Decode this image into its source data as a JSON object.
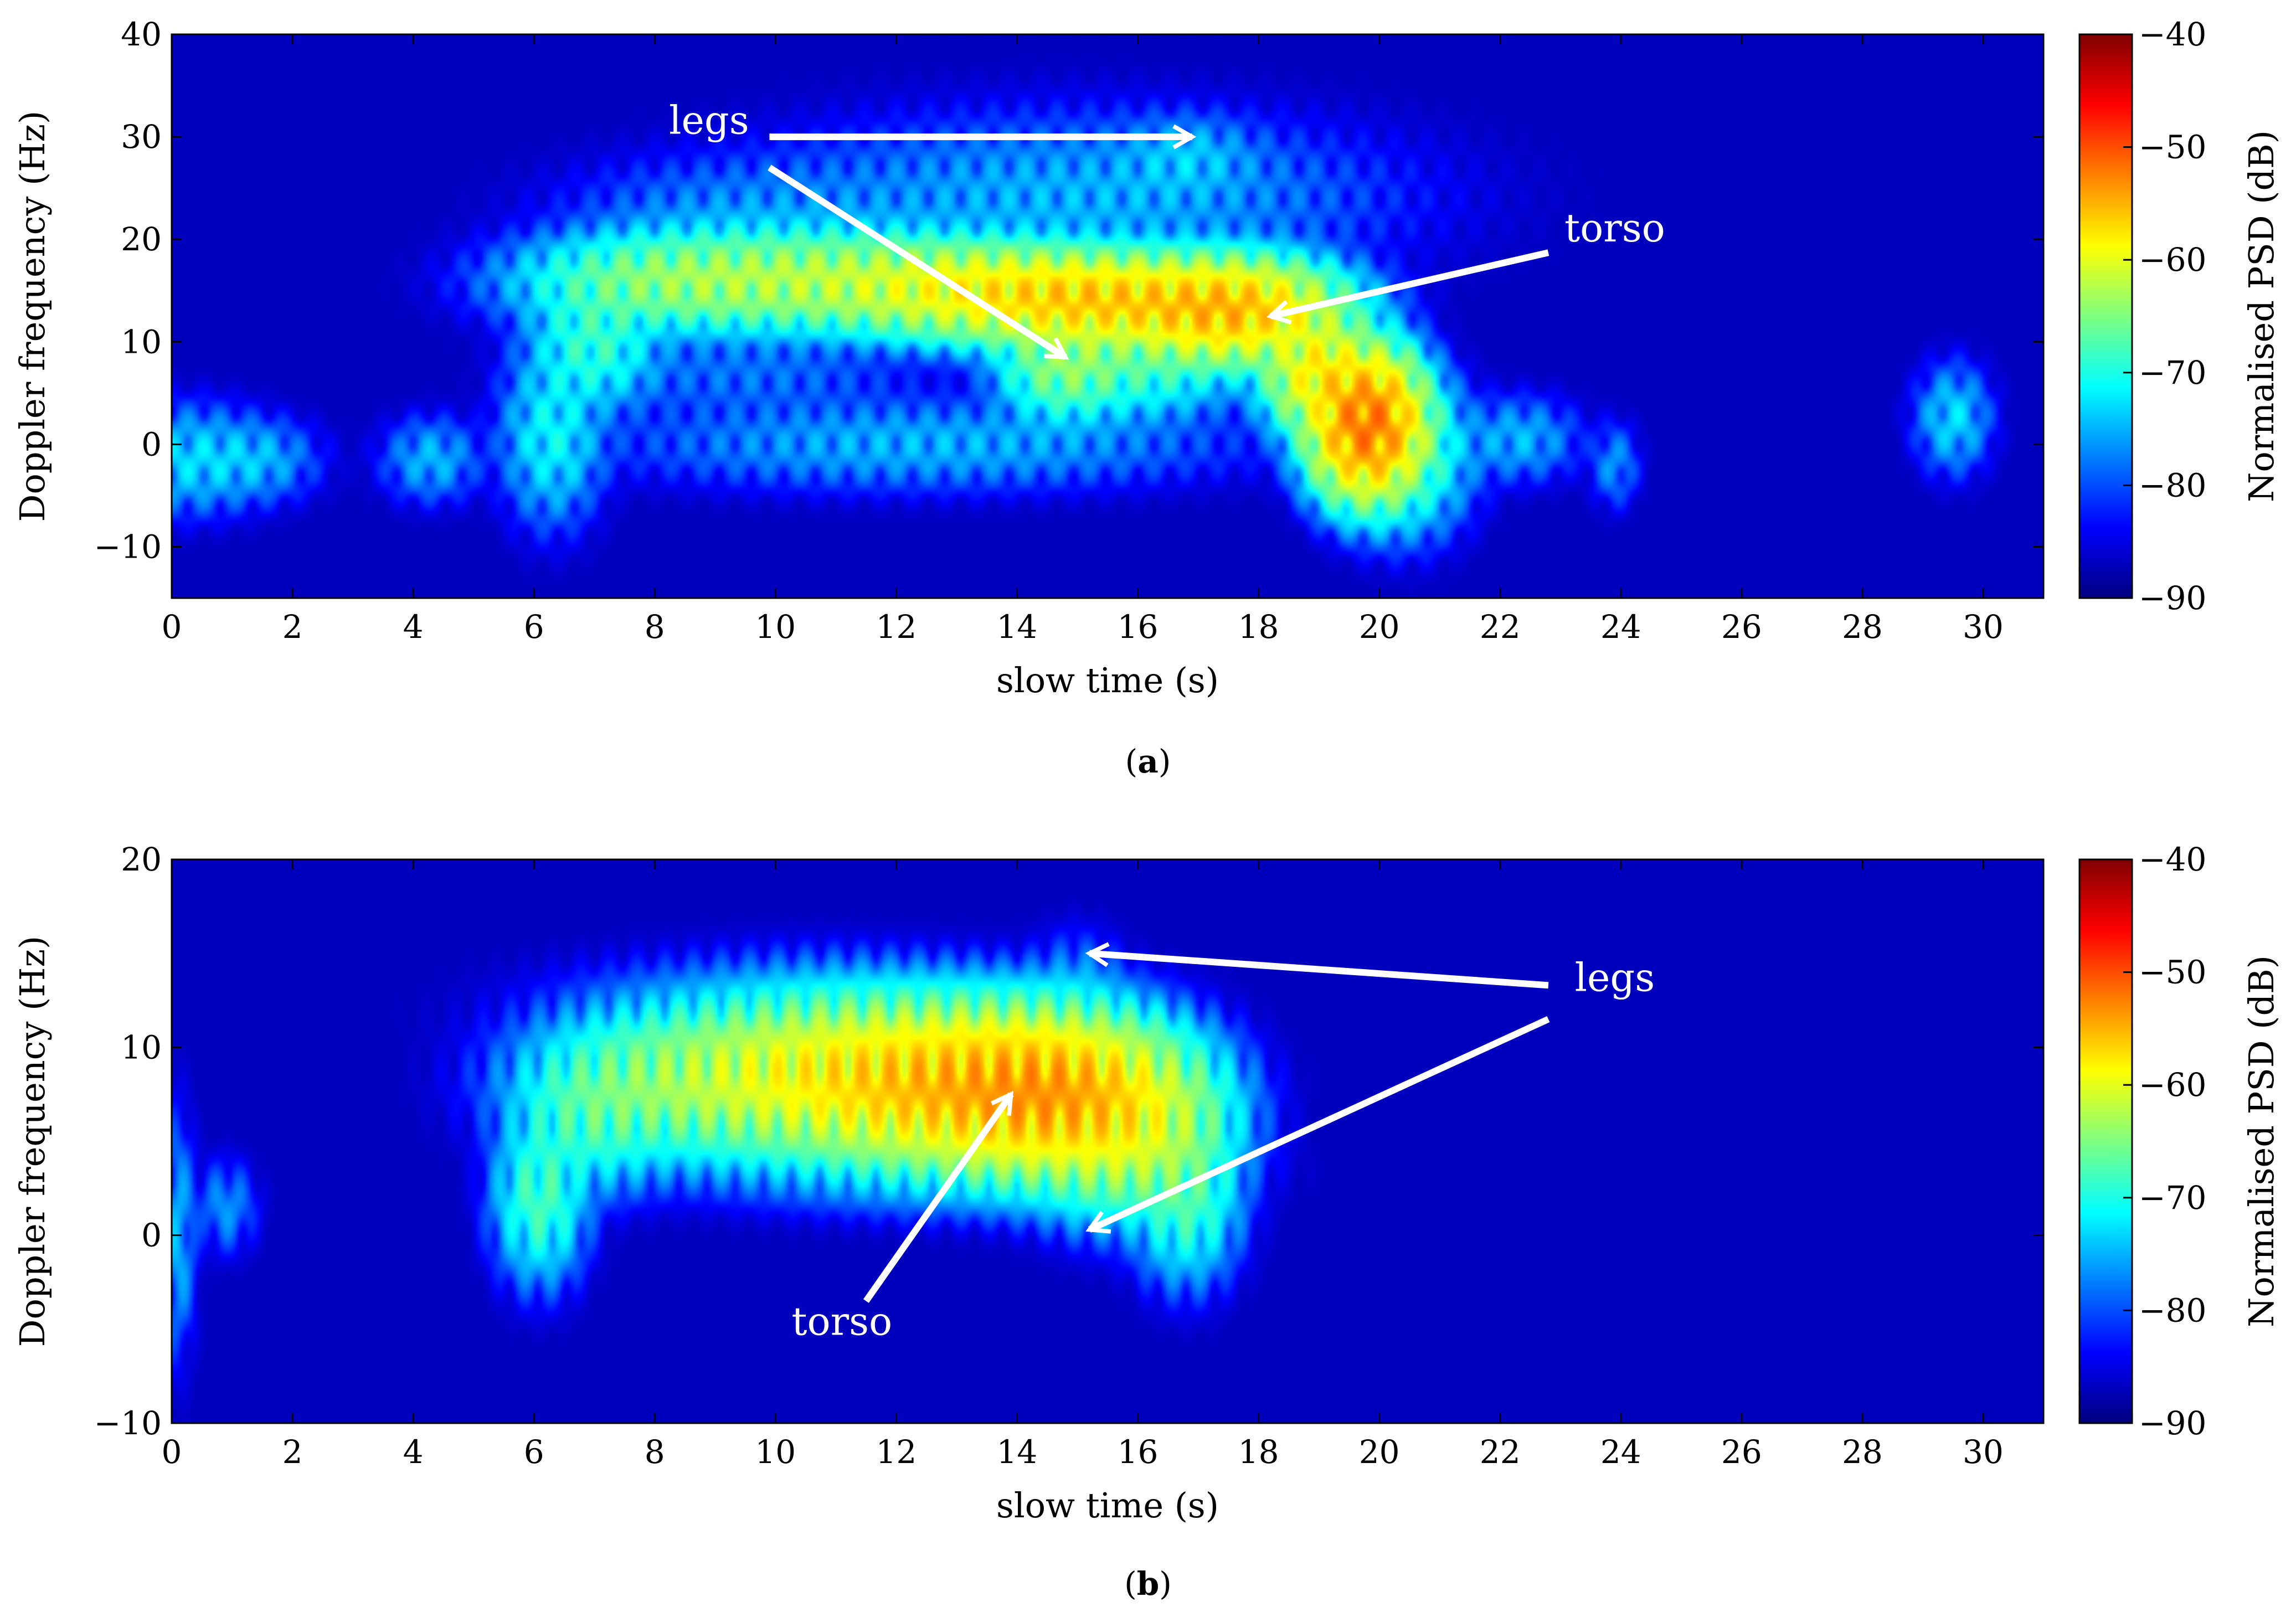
{
  "colors": {
    "background_dark": "#00008f",
    "annotation": "#ffffff",
    "colormap_stops": [
      "#00007f",
      "#0000ff",
      "#007fff",
      "#00ffff",
      "#7fff7f",
      "#ffff00",
      "#ff7f00",
      "#ff0000",
      "#7f0000"
    ]
  },
  "chart_data": [
    {
      "type": "heatmap",
      "panel_label": "a",
      "title": "",
      "xlabel": "slow time (s)",
      "ylabel": "Doppler frequency (Hz)",
      "xlim": [
        0,
        31
      ],
      "ylim": [
        -15,
        40
      ],
      "xticks": [
        0,
        2,
        4,
        6,
        8,
        10,
        12,
        14,
        16,
        18,
        20,
        22,
        24,
        26,
        28,
        30
      ],
      "yticks": [
        -10,
        0,
        10,
        20,
        30,
        40
      ],
      "colorbar": {
        "label": "Normalised PSD (dB)",
        "range": [
          -90,
          -40
        ],
        "ticks": [
          -90,
          -80,
          -70,
          -60,
          -50,
          -40
        ]
      },
      "background_level_db": -90,
      "blobs": [
        {
          "t": 0.3,
          "f": -1.5,
          "sigma_t": 0.6,
          "sigma_f": 2.5,
          "level_db": -72
        },
        {
          "t": 1.4,
          "f": -1.5,
          "sigma_t": 0.5,
          "sigma_f": 2.0,
          "level_db": -74
        },
        {
          "t": 4.3,
          "f": -1.5,
          "sigma_t": 0.4,
          "sigma_f": 2.0,
          "level_db": -74
        },
        {
          "t": 6.3,
          "f": 1.0,
          "sigma_t": 0.4,
          "sigma_f": 4.0,
          "level_db": -70
        },
        {
          "t": 7.0,
          "f": 10.0,
          "sigma_t": 0.5,
          "sigma_f": 3.0,
          "level_db": -67
        },
        {
          "t": 8.5,
          "f": 16.0,
          "sigma_t": 1.2,
          "sigma_f": 2.2,
          "level_db": -62
        },
        {
          "t": 11.0,
          "f": 16.0,
          "sigma_t": 1.5,
          "sigma_f": 2.2,
          "level_db": -60
        },
        {
          "t": 13.5,
          "f": 15.0,
          "sigma_t": 1.2,
          "sigma_f": 2.0,
          "level_db": -56
        },
        {
          "t": 15.5,
          "f": 14.0,
          "sigma_t": 1.2,
          "sigma_f": 2.0,
          "level_db": -53
        },
        {
          "t": 17.5,
          "f": 13.0,
          "sigma_t": 0.8,
          "sigma_f": 2.2,
          "level_db": -52
        },
        {
          "t": 19.0,
          "f": 7.0,
          "sigma_t": 0.4,
          "sigma_f": 2.5,
          "level_db": -55
        },
        {
          "t": 19.8,
          "f": 2.0,
          "sigma_t": 0.4,
          "sigma_f": 3.0,
          "level_db": -48
        },
        {
          "t": 20.4,
          "f": -1.0,
          "sigma_t": 0.5,
          "sigma_f": 3.5,
          "level_db": -66
        },
        {
          "t": 9.5,
          "f": 22.0,
          "sigma_t": 1.5,
          "sigma_f": 3.0,
          "level_db": -76
        },
        {
          "t": 15.0,
          "f": 24.0,
          "sigma_t": 2.5,
          "sigma_f": 4.0,
          "level_db": -74
        },
        {
          "t": 16.8,
          "f": 28.0,
          "sigma_t": 0.6,
          "sigma_f": 2.0,
          "level_db": -74
        },
        {
          "t": 14.8,
          "f": 8.0,
          "sigma_t": 0.5,
          "sigma_f": 2.5,
          "level_db": -62
        },
        {
          "t": 16.0,
          "f": 8.0,
          "sigma_t": 0.8,
          "sigma_f": 2.5,
          "level_db": -66
        },
        {
          "t": 12.5,
          "f": 0.0,
          "sigma_t": 2.5,
          "sigma_f": 2.2,
          "level_db": -74
        },
        {
          "t": 9.5,
          "f": 7.0,
          "sigma_t": 1.5,
          "sigma_f": 2.5,
          "level_db": -78
        },
        {
          "t": 22.3,
          "f": 0.5,
          "sigma_t": 0.5,
          "sigma_f": 2.0,
          "level_db": -74
        },
        {
          "t": 23.9,
          "f": -2.0,
          "sigma_t": 0.2,
          "sigma_f": 2.0,
          "level_db": -76
        },
        {
          "t": 29.5,
          "f": 2.5,
          "sigma_t": 0.3,
          "sigma_f": 2.5,
          "level_db": -72
        }
      ],
      "annotations": [
        {
          "text": "legs",
          "x": 8.9,
          "y": 30.3
        },
        {
          "text": "torso",
          "x": 23.9,
          "y": 19.8
        }
      ],
      "arrows": [
        {
          "from": [
            9.9,
            30.0
          ],
          "to": [
            16.9,
            30.0
          ]
        },
        {
          "from": [
            9.9,
            27.0
          ],
          "to": [
            14.8,
            8.5
          ]
        },
        {
          "from": [
            22.8,
            18.7
          ],
          "to": [
            18.2,
            12.5
          ]
        }
      ]
    },
    {
      "type": "heatmap",
      "panel_label": "b",
      "title": "",
      "xlabel": "slow time (s)",
      "ylabel": "Doppler frequency (Hz)",
      "xlim": [
        0,
        31
      ],
      "ylim": [
        -10,
        20
      ],
      "xticks": [
        0,
        2,
        4,
        6,
        8,
        10,
        12,
        14,
        16,
        18,
        20,
        22,
        24,
        26,
        28,
        30
      ],
      "yticks": [
        -10,
        0,
        10,
        20
      ],
      "colorbar": {
        "label": "Normalised PSD (dB)",
        "range": [
          -90,
          -40
        ],
        "ticks": [
          -90,
          -80,
          -70,
          -60,
          -50,
          -40
        ]
      },
      "background_level_db": -90,
      "blobs": [
        {
          "t": 0.1,
          "f": 0.0,
          "sigma_t": 0.15,
          "sigma_f": 3.0,
          "level_db": -74
        },
        {
          "t": 0.9,
          "f": 1.5,
          "sigma_t": 0.25,
          "sigma_f": 1.2,
          "level_db": -76
        },
        {
          "t": 6.1,
          "f": 2.0,
          "sigma_t": 0.35,
          "sigma_f": 2.0,
          "level_db": -66
        },
        {
          "t": 7.0,
          "f": 6.5,
          "sigma_t": 0.6,
          "sigma_f": 1.8,
          "level_db": -66
        },
        {
          "t": 8.8,
          "f": 8.2,
          "sigma_t": 1.2,
          "sigma_f": 1.8,
          "level_db": -61
        },
        {
          "t": 11.0,
          "f": 8.5,
          "sigma_t": 1.2,
          "sigma_f": 1.8,
          "level_db": -56
        },
        {
          "t": 13.0,
          "f": 8.0,
          "sigma_t": 1.2,
          "sigma_f": 1.8,
          "level_db": -52
        },
        {
          "t": 14.5,
          "f": 7.5,
          "sigma_t": 0.9,
          "sigma_f": 1.8,
          "level_db": -51
        },
        {
          "t": 15.8,
          "f": 6.0,
          "sigma_t": 0.7,
          "sigma_f": 2.0,
          "level_db": -57
        },
        {
          "t": 16.8,
          "f": 2.0,
          "sigma_t": 0.4,
          "sigma_f": 2.0,
          "level_db": -66
        },
        {
          "t": 15.0,
          "f": 13.0,
          "sigma_t": 0.4,
          "sigma_f": 1.5,
          "level_db": -76
        },
        {
          "t": 10.5,
          "f": 12.0,
          "sigma_t": 2.0,
          "sigma_f": 1.5,
          "level_db": -76
        },
        {
          "t": 12.5,
          "f": 3.5,
          "sigma_t": 2.0,
          "sigma_f": 1.2,
          "level_db": -76
        }
      ],
      "annotations": [
        {
          "text": "legs",
          "x": 23.9,
          "y": 13.0
        },
        {
          "text": "torso",
          "x": 11.1,
          "y": -5.3
        }
      ],
      "arrows": [
        {
          "from": [
            22.8,
            13.3
          ],
          "to": [
            15.2,
            15.0
          ]
        },
        {
          "from": [
            22.8,
            11.5
          ],
          "to": [
            15.2,
            0.3
          ]
        },
        {
          "from": [
            11.5,
            -3.5
          ],
          "to": [
            13.9,
            7.5
          ]
        }
      ]
    }
  ]
}
